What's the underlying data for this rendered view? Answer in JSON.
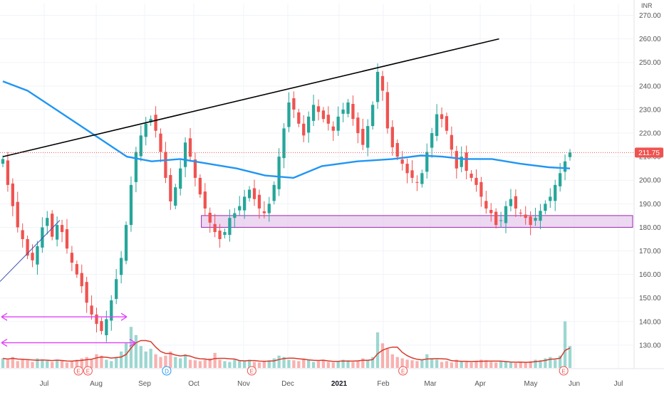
{
  "currency_label": "INR",
  "last_price_label": "211.75",
  "colors": {
    "up": "#26a69a",
    "down": "#ef5350",
    "ma": "#2196f3",
    "volume_ma": "#d63a2a",
    "trendline": "#000000",
    "zone_fill": "#e1bee7",
    "zone_stroke": "#9c27b0",
    "arrow": "#e040fb",
    "price_line": "#ef5350"
  },
  "chart_data": {
    "type": "candlestick",
    "title": "",
    "ylim": [
      120,
      275
    ],
    "y_ticks": [
      130,
      140,
      150,
      160,
      170,
      180,
      190,
      200,
      210,
      220,
      230,
      240,
      250,
      260,
      270
    ],
    "y_tick_labels": [
      "130.00",
      "140.00",
      "150.00",
      "160.00",
      "170.00",
      "180.00",
      "190.00",
      "200.00",
      "210.00",
      "220.00",
      "230.00",
      "240.00",
      "250.00",
      "260.00",
      "270.00"
    ],
    "x_labels": [
      "Jul",
      "Aug",
      "Sep",
      "Oct",
      "Nov",
      "Dec",
      "2021",
      "Feb",
      "Mar",
      "Apr",
      "May",
      "Jun",
      "Jul"
    ],
    "last_price": 211.75,
    "grid": true,
    "moving_average_keypoints": [
      [
        0,
        242
      ],
      [
        7,
        238
      ],
      [
        15,
        230
      ],
      [
        25,
        220
      ],
      [
        35,
        210
      ],
      [
        42,
        208
      ],
      [
        50,
        209
      ],
      [
        58,
        207
      ],
      [
        66,
        205
      ],
      [
        74,
        202
      ],
      [
        82,
        201
      ],
      [
        90,
        206
      ],
      [
        100,
        208
      ],
      [
        110,
        209
      ],
      [
        118,
        210.5
      ],
      [
        124,
        210
      ],
      [
        130,
        209
      ],
      [
        138,
        209
      ],
      [
        146,
        207
      ],
      [
        154,
        205.5
      ],
      [
        160,
        205
      ]
    ],
    "candle_closes": [
      209,
      198,
      189,
      180,
      175,
      168,
      166,
      172,
      180,
      184,
      176,
      181,
      178,
      171,
      165,
      160,
      155,
      148,
      143,
      139,
      136,
      141,
      149,
      158,
      167,
      181,
      198,
      212,
      219,
      224,
      226,
      221,
      212,
      201,
      191,
      197,
      205,
      216,
      210,
      201,
      194,
      188,
      182,
      178,
      175,
      178,
      184,
      186,
      189,
      193,
      196,
      192,
      188,
      186,
      190,
      198,
      210,
      222,
      233,
      230,
      224,
      219,
      227,
      232,
      229,
      226,
      224,
      221,
      227,
      230,
      233,
      226,
      220,
      215,
      223,
      232,
      246,
      238,
      222,
      214,
      210,
      207,
      203,
      201,
      199,
      203,
      212,
      220,
      228,
      226,
      221,
      213,
      205,
      210,
      204,
      201,
      198,
      193,
      188,
      186,
      181,
      183,
      189,
      192,
      188,
      186,
      184,
      181,
      184,
      187,
      190,
      193,
      198,
      203,
      208,
      211.75
    ],
    "volume_relative": [
      0.35,
      0.3,
      0.4,
      0.25,
      0.3,
      0.28,
      0.22,
      0.35,
      0.3,
      0.26,
      0.22,
      0.3,
      0.28,
      0.2,
      0.25,
      0.3,
      0.35,
      0.4,
      0.3,
      0.5,
      0.45,
      0.3,
      0.25,
      0.4,
      0.6,
      0.9,
      1.5,
      1.2,
      0.8,
      0.6,
      0.7,
      0.5,
      0.4,
      0.45,
      0.6,
      0.4,
      0.35,
      0.5,
      0.3,
      0.28,
      0.25,
      0.3,
      0.35,
      0.55,
      0.3,
      0.25,
      0.22,
      0.3,
      0.28,
      0.25,
      0.3,
      0.22,
      0.2,
      0.25,
      0.28,
      0.35,
      0.45,
      0.4,
      0.3,
      0.28,
      0.25,
      0.35,
      0.3,
      0.22,
      0.25,
      0.3,
      0.22,
      0.2,
      0.25,
      0.3,
      0.28,
      0.22,
      0.25,
      0.35,
      0.3,
      0.4,
      1.3,
      0.9,
      0.7,
      0.5,
      0.4,
      0.35,
      0.3,
      0.28,
      0.25,
      0.3,
      0.5,
      0.35,
      0.3,
      0.22,
      0.25,
      0.2,
      0.3,
      0.25,
      0.22,
      0.2,
      0.25,
      0.3,
      0.28,
      0.22,
      0.2,
      0.25,
      0.22,
      0.2,
      0.18,
      0.22,
      0.2,
      0.25,
      0.3,
      0.28,
      0.35,
      0.4,
      0.3,
      0.45,
      1.7,
      0.8
    ],
    "annotations": {
      "rising_trendline": {
        "from": [
          0,
          210
        ],
        "to": [
          140,
          260
        ]
      },
      "support_zone": {
        "x_start": 56,
        "x_end": 160,
        "y_low": 180,
        "y_high": 185
      }
    },
    "event_markers": [
      {
        "label": "E",
        "index": 24
      },
      {
        "label": "E",
        "index": 27
      },
      {
        "label": "D",
        "index": 52
      },
      {
        "label": "E",
        "index": 79
      },
      {
        "label": "E",
        "index": 127
      },
      {
        "label": "E",
        "index": 178
      }
    ]
  }
}
